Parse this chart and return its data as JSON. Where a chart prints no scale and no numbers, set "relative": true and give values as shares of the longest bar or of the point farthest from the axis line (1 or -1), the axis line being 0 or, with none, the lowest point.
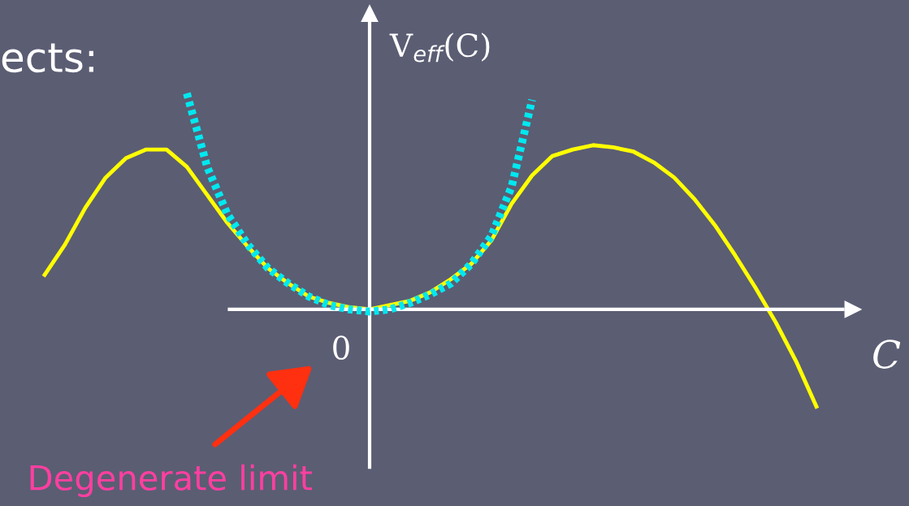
{
  "chart_data": {
    "type": "line",
    "relative": true,
    "xlabel": "C",
    "ylabel": "V$_{eff}$(C)",
    "categories": [
      null,
      null,
      null,
      null,
      null,
      null,
      null,
      null,
      null,
      null,
      null,
      null,
      null,
      null,
      null,
      null,
      null,
      null,
      null,
      null,
      null,
      null,
      null,
      null,
      null,
      null,
      null,
      null,
      null,
      null,
      null,
      null,
      null,
      null,
      null,
      null,
      null,
      null,
      null
    ],
    "series": [
      {
        "color": "#ffff00",
        "line_style": "solid",
        "values": [
          0.16,
          0.3,
          0.47,
          0.61,
          0.7,
          0.74,
          0.74,
          0.66,
          0.53,
          0.4,
          0.29,
          0.19,
          0.12,
          0.06,
          0.03,
          0.01,
          0,
          0.02,
          0.04,
          0.08,
          0.14,
          0.21,
          0.32,
          0.49,
          0.62,
          0.71,
          0.74,
          0.76,
          0.75,
          0.73,
          0.68,
          0.61,
          0.51,
          0.39,
          0.25,
          0.1,
          -0.06,
          -0.24,
          -0.45
        ]
      },
      {
        "color": "#00e8f0",
        "line_style": "dotted",
        "values": [
          null,
          null,
          null,
          null,
          null,
          null,
          null,
          1.0,
          0.66,
          0.44,
          0.3,
          0.19,
          0.12,
          0.06,
          0.02,
          0.0,
          -0.01,
          0.0,
          0.03,
          0.07,
          0.12,
          0.21,
          0.34,
          0.57,
          0.97,
          null,
          null,
          null,
          null,
          null,
          null,
          null,
          null,
          null,
          null,
          null,
          null,
          null,
          null
        ]
      }
    ],
    "annotations": [
      "ects:",
      "0",
      "Degenerate limit"
    ],
    "grid": false,
    "legend": false,
    "marker": "none"
  }
}
